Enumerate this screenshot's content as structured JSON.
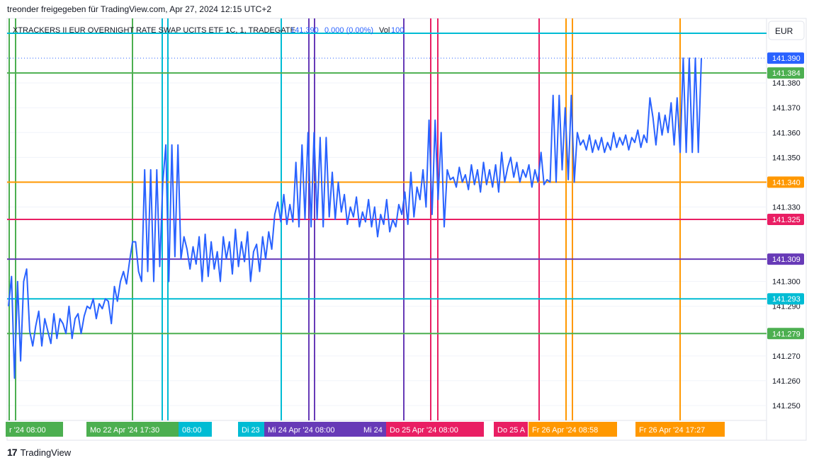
{
  "header": {
    "published": "treonder freigegeben für TradingView.com, Apr 27, 2024 12:15 UTC+2"
  },
  "legend": {
    "symbol": "XTRACKERS II EUR OVERNIGHT RATE SWAP UCITS ETF 1C, 1, TRADEGATE",
    "last": "141.390",
    "change": "0.000 (0.00%)",
    "vol_label": "Vol",
    "vol_value": "100"
  },
  "currency_button": "EUR",
  "footer": {
    "brand": "TradingView",
    "logo": "17"
  },
  "colors": {
    "series": "#2962ff",
    "green": "#4caf50",
    "cyan": "#00bcd4",
    "orange": "#ff9800",
    "pink": "#e91e63",
    "purple": "#673ab7",
    "last_price": "#2962ff"
  },
  "chart_data": {
    "type": "line",
    "ylim": [
      141.244,
      141.406
    ],
    "y_ticks": [
      "141.380",
      "141.370",
      "141.360",
      "141.350",
      "141.330",
      "141.300",
      "141.290",
      "141.270",
      "141.260",
      "141.250"
    ],
    "horizontal_levels": [
      {
        "value": 141.384,
        "label": "141.384",
        "color": "#4caf50"
      },
      {
        "value": 141.34,
        "label": "141.340",
        "color": "#ff9800"
      },
      {
        "value": 141.325,
        "label": "141.325",
        "color": "#e91e63"
      },
      {
        "value": 141.309,
        "label": "141.309",
        "color": "#673ab7"
      },
      {
        "value": 141.293,
        "label": "141.293",
        "color": "#00bcd4"
      },
      {
        "value": 141.279,
        "label": "141.279",
        "color": "#4caf50"
      },
      {
        "value": 141.4,
        "label": "",
        "color": "#00bcd4"
      }
    ],
    "last_price": {
      "value": 141.39,
      "label": "141.390"
    },
    "time_labels": [
      {
        "text": "r '24   08:00",
        "color": "#4caf50"
      },
      {
        "text": "Mo 22 Apr '24   17:30",
        "color": "#4caf50"
      },
      {
        "text": "08:00",
        "color": "#00bcd4"
      },
      {
        "text": "Di 23",
        "color": "#00bcd4"
      },
      {
        "text": "Mi 24 Apr '24   08:00",
        "color": "#673ab7"
      },
      {
        "text": "Mi 24",
        "color": "#673ab7"
      },
      {
        "text": "Do 25 Apr '24   08:00",
        "color": "#e91e63"
      },
      {
        "text": "Do 25 A",
        "color": "#e91e63"
      },
      {
        "text": "Fr 26 Apr '24   08:58",
        "color": "#ff9800"
      },
      {
        "text": "Fr 26 Apr '24   17:27",
        "color": "#ff9800"
      }
    ],
    "vertical_line_colors": [
      "#4caf50",
      "#4caf50",
      "#4caf50",
      "#00bcd4",
      "#00bcd4",
      "#00bcd4",
      "#673ab7",
      "#673ab7",
      "#673ab7",
      "#e91e63",
      "#e91e63",
      "#e91e63",
      "#ff9800",
      "#ff9800",
      "#ff9800"
    ],
    "series": [
      {
        "values": [
          141.29,
          141.302,
          141.261,
          141.3,
          141.268,
          141.3,
          141.305,
          141.28,
          141.274,
          141.282,
          141.288,
          141.274,
          141.285,
          141.28,
          141.275,
          141.287,
          141.277,
          141.285,
          141.283,
          141.279,
          141.29,
          141.277,
          141.285,
          141.287,
          141.279,
          141.286,
          141.29,
          141.289,
          141.293,
          141.285,
          141.291,
          141.289,
          141.293,
          141.292,
          141.283,
          141.298,
          141.292,
          141.3,
          141.304,
          141.299,
          141.308,
          141.316,
          141.316,
          141.304,
          141.3,
          141.345,
          141.304,
          141.345,
          141.3,
          141.345,
          141.306,
          141.34,
          141.355,
          141.3,
          141.355,
          141.31,
          141.355,
          141.309,
          141.318,
          141.313,
          141.305,
          141.314,
          141.307,
          141.318,
          141.3,
          141.319,
          141.302,
          141.316,
          141.305,
          141.312,
          141.3,
          141.318,
          141.309,
          141.316,
          141.303,
          141.321,
          141.306,
          141.316,
          141.308,
          141.32,
          141.3,
          141.312,
          141.315,
          141.304,
          141.318,
          141.309,
          141.32,
          141.313,
          141.327,
          141.332,
          141.324,
          141.335,
          141.323,
          141.331,
          141.324,
          141.348,
          141.322,
          141.355,
          141.325,
          141.36,
          141.322,
          141.36,
          141.325,
          141.358,
          141.322,
          141.358,
          141.326,
          141.344,
          141.325,
          141.34,
          141.328,
          141.335,
          141.323,
          141.33,
          141.326,
          141.334,
          141.322,
          141.328,
          141.324,
          141.333,
          141.322,
          141.33,
          141.318,
          141.327,
          141.323,
          141.333,
          141.32,
          141.325,
          141.322,
          141.331,
          141.327,
          141.336,
          141.323,
          141.344,
          141.326,
          141.338,
          141.333,
          141.345,
          141.33,
          141.365,
          141.327,
          141.365,
          141.333,
          141.36,
          141.322,
          141.345,
          141.341,
          141.342,
          141.338,
          141.346,
          141.34,
          141.343,
          141.337,
          141.347,
          141.339,
          141.345,
          141.336,
          141.348,
          141.339,
          141.345,
          141.338,
          141.347,
          141.336,
          141.352,
          141.34,
          141.346,
          141.35,
          141.342,
          141.348,
          141.34,
          141.345,
          141.342,
          141.347,
          141.338,
          141.345,
          141.34,
          141.352,
          141.339,
          141.341,
          141.34,
          141.375,
          141.34,
          141.375,
          141.345,
          141.37,
          141.341,
          141.375,
          141.34,
          141.36,
          141.355,
          141.357,
          141.353,
          141.359,
          141.352,
          141.357,
          141.353,
          141.358,
          141.352,
          141.356,
          141.353,
          141.36,
          141.354,
          141.358,
          141.355,
          141.359,
          141.353,
          141.358,
          141.356,
          141.361,
          141.354,
          141.359,
          141.356,
          141.374,
          141.366,
          141.355,
          141.368,
          141.359,
          141.367,
          141.36,
          141.372,
          141.355,
          141.374,
          141.352,
          141.39,
          141.352,
          141.39,
          141.352,
          141.39,
          141.352,
          141.39
        ]
      }
    ]
  }
}
